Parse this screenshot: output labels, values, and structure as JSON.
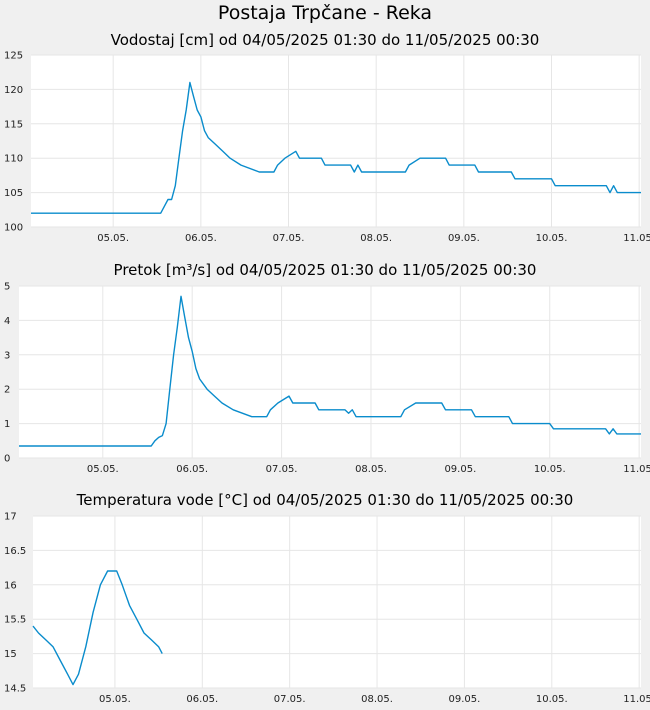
{
  "page": {
    "title": "Postaja Trpčane - Reka"
  },
  "chart_data": [
    {
      "type": "line",
      "title": "Vodostaj [cm] od 04/05/2025 01:30 do 11/05/2025 00:30",
      "x_range": [
        "2025-05-04 01:30",
        "2025-05-11 00:30"
      ],
      "x_tick_labels": [
        "05.05.",
        "06.05.",
        "07.05.",
        "08.05.",
        "09.05.",
        "10.05.",
        "11.05."
      ],
      "ylim": [
        100,
        125
      ],
      "y_tick_labels": [
        "100",
        "105",
        "110",
        "115",
        "120",
        "125"
      ],
      "grid": true,
      "color": "#0a8ccc",
      "series": [
        {
          "values": [
            [
              "2025-05-04 01:30",
              102
            ],
            [
              "2025-05-05 13:00",
              102
            ],
            [
              "2025-05-05 14:00",
              103
            ],
            [
              "2025-05-05 15:00",
              104
            ],
            [
              "2025-05-05 16:00",
              104
            ],
            [
              "2025-05-05 17:00",
              106
            ],
            [
              "2025-05-05 18:00",
              110
            ],
            [
              "2025-05-05 19:00",
              114
            ],
            [
              "2025-05-05 20:00",
              117
            ],
            [
              "2025-05-05 21:00",
              121
            ],
            [
              "2025-05-05 22:00",
              119
            ],
            [
              "2025-05-05 23:00",
              117
            ],
            [
              "2025-05-06 00:00",
              116
            ],
            [
              "2025-05-06 01:00",
              114
            ],
            [
              "2025-05-06 02:00",
              113
            ],
            [
              "2025-05-06 04:00",
              112
            ],
            [
              "2025-05-06 06:00",
              111
            ],
            [
              "2025-05-06 08:00",
              110
            ],
            [
              "2025-05-06 11:00",
              109
            ],
            [
              "2025-05-06 16:00",
              108
            ],
            [
              "2025-05-06 20:00",
              108
            ],
            [
              "2025-05-06 21:00",
              109
            ],
            [
              "2025-05-06 23:00",
              110
            ],
            [
              "2025-05-07 02:00",
              111
            ],
            [
              "2025-05-07 03:00",
              110
            ],
            [
              "2025-05-07 09:00",
              110
            ],
            [
              "2025-05-07 10:00",
              109
            ],
            [
              "2025-05-07 17:00",
              109
            ],
            [
              "2025-05-07 18:00",
              108
            ],
            [
              "2025-05-07 19:00",
              109
            ],
            [
              "2025-05-07 20:00",
              108
            ],
            [
              "2025-05-08 08:00",
              108
            ],
            [
              "2025-05-08 09:00",
              109
            ],
            [
              "2025-05-08 12:00",
              110
            ],
            [
              "2025-05-08 19:00",
              110
            ],
            [
              "2025-05-08 20:00",
              109
            ],
            [
              "2025-05-09 03:00",
              109
            ],
            [
              "2025-05-09 04:00",
              108
            ],
            [
              "2025-05-09 13:00",
              108
            ],
            [
              "2025-05-09 14:00",
              107
            ],
            [
              "2025-05-10 00:00",
              107
            ],
            [
              "2025-05-10 01:00",
              106
            ],
            [
              "2025-05-10 15:00",
              106
            ],
            [
              "2025-05-10 16:00",
              105
            ],
            [
              "2025-05-10 17:00",
              106
            ],
            [
              "2025-05-10 18:00",
              105
            ],
            [
              "2025-05-11 00:30",
              105
            ]
          ]
        }
      ]
    },
    {
      "type": "line",
      "title": "Pretok [m³/s] od 04/05/2025 01:30 do 11/05/2025 00:30",
      "x_range": [
        "2025-05-04 01:30",
        "2025-05-11 00:30"
      ],
      "x_tick_labels": [
        "05.05.",
        "06.05.",
        "07.05.",
        "08.05.",
        "09.05.",
        "10.05.",
        "11.05."
      ],
      "ylim": [
        0,
        5
      ],
      "y_tick_labels": [
        "0",
        "1",
        "2",
        "3",
        "4",
        "5"
      ],
      "grid": true,
      "color": "#0a8ccc",
      "series": [
        {
          "values": [
            [
              "2025-05-04 01:30",
              0.35
            ],
            [
              "2025-05-05 13:00",
              0.35
            ],
            [
              "2025-05-05 14:00",
              0.5
            ],
            [
              "2025-05-05 15:00",
              0.6
            ],
            [
              "2025-05-05 16:00",
              0.65
            ],
            [
              "2025-05-05 17:00",
              1.0
            ],
            [
              "2025-05-05 18:00",
              2.0
            ],
            [
              "2025-05-05 19:00",
              3.0
            ],
            [
              "2025-05-05 20:00",
              3.8
            ],
            [
              "2025-05-05 21:00",
              4.7
            ],
            [
              "2025-05-05 22:00",
              4.1
            ],
            [
              "2025-05-05 23:00",
              3.5
            ],
            [
              "2025-05-06 00:00",
              3.1
            ],
            [
              "2025-05-06 01:00",
              2.6
            ],
            [
              "2025-05-06 02:00",
              2.3
            ],
            [
              "2025-05-06 04:00",
              2.0
            ],
            [
              "2025-05-06 06:00",
              1.8
            ],
            [
              "2025-05-06 08:00",
              1.6
            ],
            [
              "2025-05-06 11:00",
              1.4
            ],
            [
              "2025-05-06 16:00",
              1.2
            ],
            [
              "2025-05-06 20:00",
              1.2
            ],
            [
              "2025-05-06 21:00",
              1.4
            ],
            [
              "2025-05-06 23:00",
              1.6
            ],
            [
              "2025-05-07 02:00",
              1.8
            ],
            [
              "2025-05-07 03:00",
              1.6
            ],
            [
              "2025-05-07 09:00",
              1.6
            ],
            [
              "2025-05-07 10:00",
              1.4
            ],
            [
              "2025-05-07 17:00",
              1.4
            ],
            [
              "2025-05-07 18:00",
              1.3
            ],
            [
              "2025-05-07 19:00",
              1.4
            ],
            [
              "2025-05-07 20:00",
              1.2
            ],
            [
              "2025-05-08 08:00",
              1.2
            ],
            [
              "2025-05-08 09:00",
              1.4
            ],
            [
              "2025-05-08 12:00",
              1.6
            ],
            [
              "2025-05-08 19:00",
              1.6
            ],
            [
              "2025-05-08 20:00",
              1.4
            ],
            [
              "2025-05-09 03:00",
              1.4
            ],
            [
              "2025-05-09 04:00",
              1.2
            ],
            [
              "2025-05-09 13:00",
              1.2
            ],
            [
              "2025-05-09 14:00",
              1.0
            ],
            [
              "2025-05-10 00:00",
              1.0
            ],
            [
              "2025-05-10 01:00",
              0.85
            ],
            [
              "2025-05-10 15:00",
              0.85
            ],
            [
              "2025-05-10 16:00",
              0.7
            ],
            [
              "2025-05-10 17:00",
              0.85
            ],
            [
              "2025-05-10 18:00",
              0.7
            ],
            [
              "2025-05-11 00:30",
              0.7
            ]
          ]
        }
      ]
    },
    {
      "type": "line",
      "title": "Temperatura vode [°C] od 04/05/2025 01:30 do 11/05/2025 00:30",
      "x_range": [
        "2025-05-04 01:30",
        "2025-05-11 00:30"
      ],
      "x_tick_labels": [
        "05.05.",
        "06.05.",
        "07.05.",
        "08.05.",
        "09.05.",
        "10.05.",
        "11.05."
      ],
      "ylim": [
        14.5,
        17
      ],
      "y_tick_labels": [
        "14.5",
        "15",
        "15.5",
        "16",
        "16.5",
        "17"
      ],
      "grid": true,
      "color": "#0a8ccc",
      "series": [
        {
          "values": [
            [
              "2025-05-04 01:30",
              15.4
            ],
            [
              "2025-05-04 03:00",
              15.3
            ],
            [
              "2025-05-04 05:00",
              15.2
            ],
            [
              "2025-05-04 07:00",
              15.1
            ],
            [
              "2025-05-04 09:00",
              14.9
            ],
            [
              "2025-05-04 11:00",
              14.7
            ],
            [
              "2025-05-04 12:30",
              14.55
            ],
            [
              "2025-05-04 14:00",
              14.7
            ],
            [
              "2025-05-04 16:00",
              15.1
            ],
            [
              "2025-05-04 18:00",
              15.6
            ],
            [
              "2025-05-04 20:00",
              16.0
            ],
            [
              "2025-05-04 22:00",
              16.2
            ],
            [
              "2025-05-05 00:30",
              16.2
            ],
            [
              "2025-05-05 02:00",
              16.0
            ],
            [
              "2025-05-05 04:00",
              15.7
            ],
            [
              "2025-05-05 06:00",
              15.5
            ],
            [
              "2025-05-05 08:00",
              15.3
            ],
            [
              "2025-05-05 10:00",
              15.2
            ],
            [
              "2025-05-05 12:00",
              15.1
            ],
            [
              "2025-05-05 13:00",
              15.0
            ]
          ]
        }
      ]
    }
  ]
}
